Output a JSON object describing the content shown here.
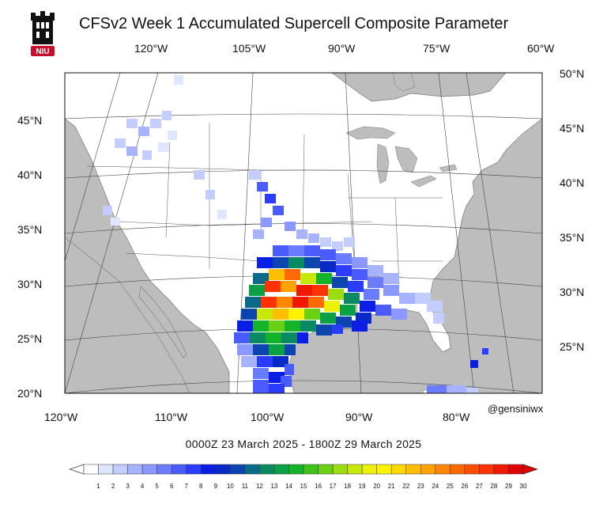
{
  "title": "CFSv2 Week 1 Accumulated Supercell Composite Parameter",
  "logo": {
    "name": "niu-logo",
    "text": "NIU"
  },
  "credit": "@gensiniwx",
  "date_range": "0000Z 23  March  2025  - 1800Z 29  March  2025",
  "top_lon_labels": [
    "120°W",
    "105°W",
    "90°W",
    "75°W",
    "60°W"
  ],
  "bottom_lon_labels": [
    "120°W",
    "110°W",
    "100°W",
    "90°W",
    "80°W"
  ],
  "left_lat_labels": [
    "45°N",
    "40°N",
    "35°N",
    "30°N",
    "25°N",
    "20°N"
  ],
  "right_lat_labels": [
    "50°N",
    "45°N",
    "40°N",
    "35°N",
    "30°N",
    "25°N"
  ],
  "colorbar": {
    "ticks": [
      "1",
      "2",
      "3",
      "4",
      "5",
      "6",
      "7",
      "8",
      "9",
      "10",
      "11",
      "12",
      "13",
      "14",
      "15",
      "16",
      "17",
      "18",
      "19",
      "20",
      "21",
      "22",
      "23",
      "24",
      "25",
      "26",
      "27",
      "28",
      "29",
      "30"
    ],
    "colors": [
      "#ffffff",
      "#dfe6ff",
      "#c4cdff",
      "#a7b3ff",
      "#8a98ff",
      "#6b7cff",
      "#4a5cff",
      "#2a3dff",
      "#0a1ee6",
      "#0a2ac8",
      "#0d45b0",
      "#0b6a8a",
      "#0a8a62",
      "#0aa044",
      "#14b42a",
      "#3cc21a",
      "#6ad014",
      "#9cdc10",
      "#c8e80c",
      "#eef008",
      "#fff200",
      "#ffd800",
      "#ffbe00",
      "#ffa200",
      "#ff8600",
      "#ff6a00",
      "#ff4e00",
      "#ff3200",
      "#f01800",
      "#e00000"
    ]
  }
}
